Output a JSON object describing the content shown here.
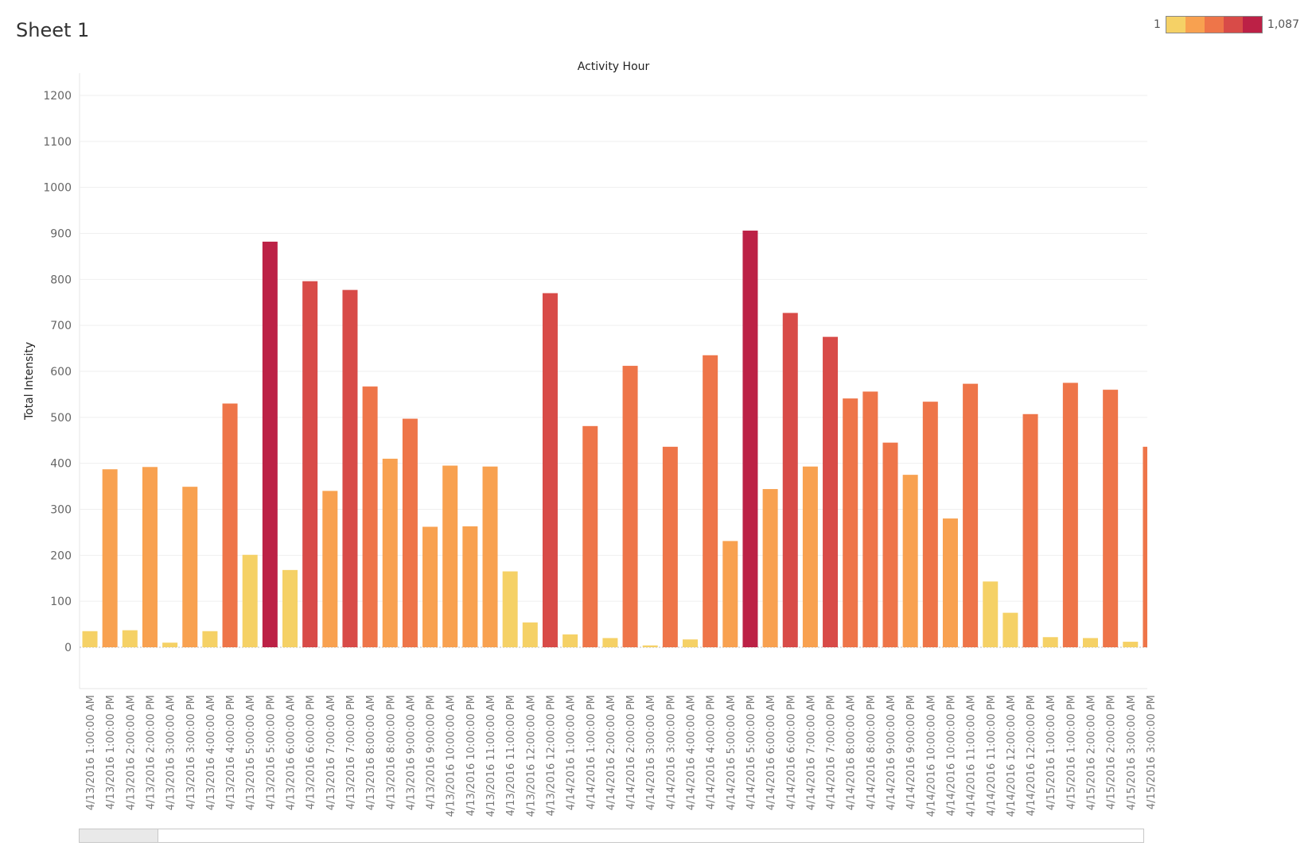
{
  "sheet": {
    "title": "Sheet 1"
  },
  "legend": {
    "min_label": "1",
    "max_label": "1,087",
    "colors": [
      "#F5D166",
      "#F8A150",
      "#EE7549",
      "#D84B48",
      "#BC2146"
    ]
  },
  "chart_data": {
    "type": "bar",
    "title": "Activity Hour",
    "xlabel": "",
    "ylabel": "Total Intensity",
    "ylim": [
      0,
      1200
    ],
    "yticks": [
      0,
      100,
      200,
      300,
      400,
      500,
      600,
      700,
      800,
      900,
      1000,
      1100,
      1200
    ],
    "grid": true,
    "color_scale": {
      "min": 1,
      "max": 1087
    },
    "categories": [
      "4/13/2016 1:00:00 AM",
      "4/13/2016 1:00:00 PM",
      "4/13/2016 2:00:00 AM",
      "4/13/2016 2:00:00 PM",
      "4/13/2016 3:00:00 AM",
      "4/13/2016 3:00:00 PM",
      "4/13/2016 4:00:00 AM",
      "4/13/2016 4:00:00 PM",
      "4/13/2016 5:00:00 AM",
      "4/13/2016 5:00:00 PM",
      "4/13/2016 6:00:00 AM",
      "4/13/2016 6:00:00 PM",
      "4/13/2016 7:00:00 AM",
      "4/13/2016 7:00:00 PM",
      "4/13/2016 8:00:00 AM",
      "4/13/2016 8:00:00 PM",
      "4/13/2016 9:00:00 AM",
      "4/13/2016 9:00:00 PM",
      "4/13/2016 10:00:00 AM",
      "4/13/2016 10:00:00 PM",
      "4/13/2016 11:00:00 AM",
      "4/13/2016 11:00:00 PM",
      "4/13/2016 12:00:00 AM",
      "4/13/2016 12:00:00 PM",
      "4/14/2016 1:00:00 AM",
      "4/14/2016 1:00:00 PM",
      "4/14/2016 2:00:00 AM",
      "4/14/2016 2:00:00 PM",
      "4/14/2016 3:00:00 AM",
      "4/14/2016 3:00:00 PM",
      "4/14/2016 4:00:00 AM",
      "4/14/2016 4:00:00 PM",
      "4/14/2016 5:00:00 AM",
      "4/14/2016 5:00:00 PM",
      "4/14/2016 6:00:00 AM",
      "4/14/2016 6:00:00 PM",
      "4/14/2016 7:00:00 AM",
      "4/14/2016 7:00:00 PM",
      "4/14/2016 8:00:00 AM",
      "4/14/2016 8:00:00 PM",
      "4/14/2016 9:00:00 AM",
      "4/14/2016 9:00:00 PM",
      "4/14/2016 10:00:00 AM",
      "4/14/2016 10:00:00 PM",
      "4/14/2016 11:00:00 AM",
      "4/14/2016 11:00:00 PM",
      "4/14/2016 12:00:00 AM",
      "4/14/2016 12:00:00 PM",
      "4/15/2016 1:00:00 AM",
      "4/15/2016 1:00:00 PM",
      "4/15/2016 2:00:00 AM",
      "4/15/2016 2:00:00 PM",
      "4/15/2016 3:00:00 AM",
      "4/15/2016 3:00:00 PM"
    ],
    "values": [
      35,
      387,
      37,
      392,
      10,
      349,
      35,
      530,
      201,
      882,
      168,
      796,
      340,
      777,
      567,
      410,
      497,
      262,
      395,
      263,
      393,
      165,
      54,
      770,
      28,
      481,
      20,
      612,
      4,
      436,
      17,
      635,
      231,
      906,
      344,
      727,
      393,
      675,
      541,
      556,
      445,
      375,
      534,
      280,
      573,
      143,
      75,
      507,
      22,
      575,
      20,
      560,
      12,
      436
    ]
  }
}
